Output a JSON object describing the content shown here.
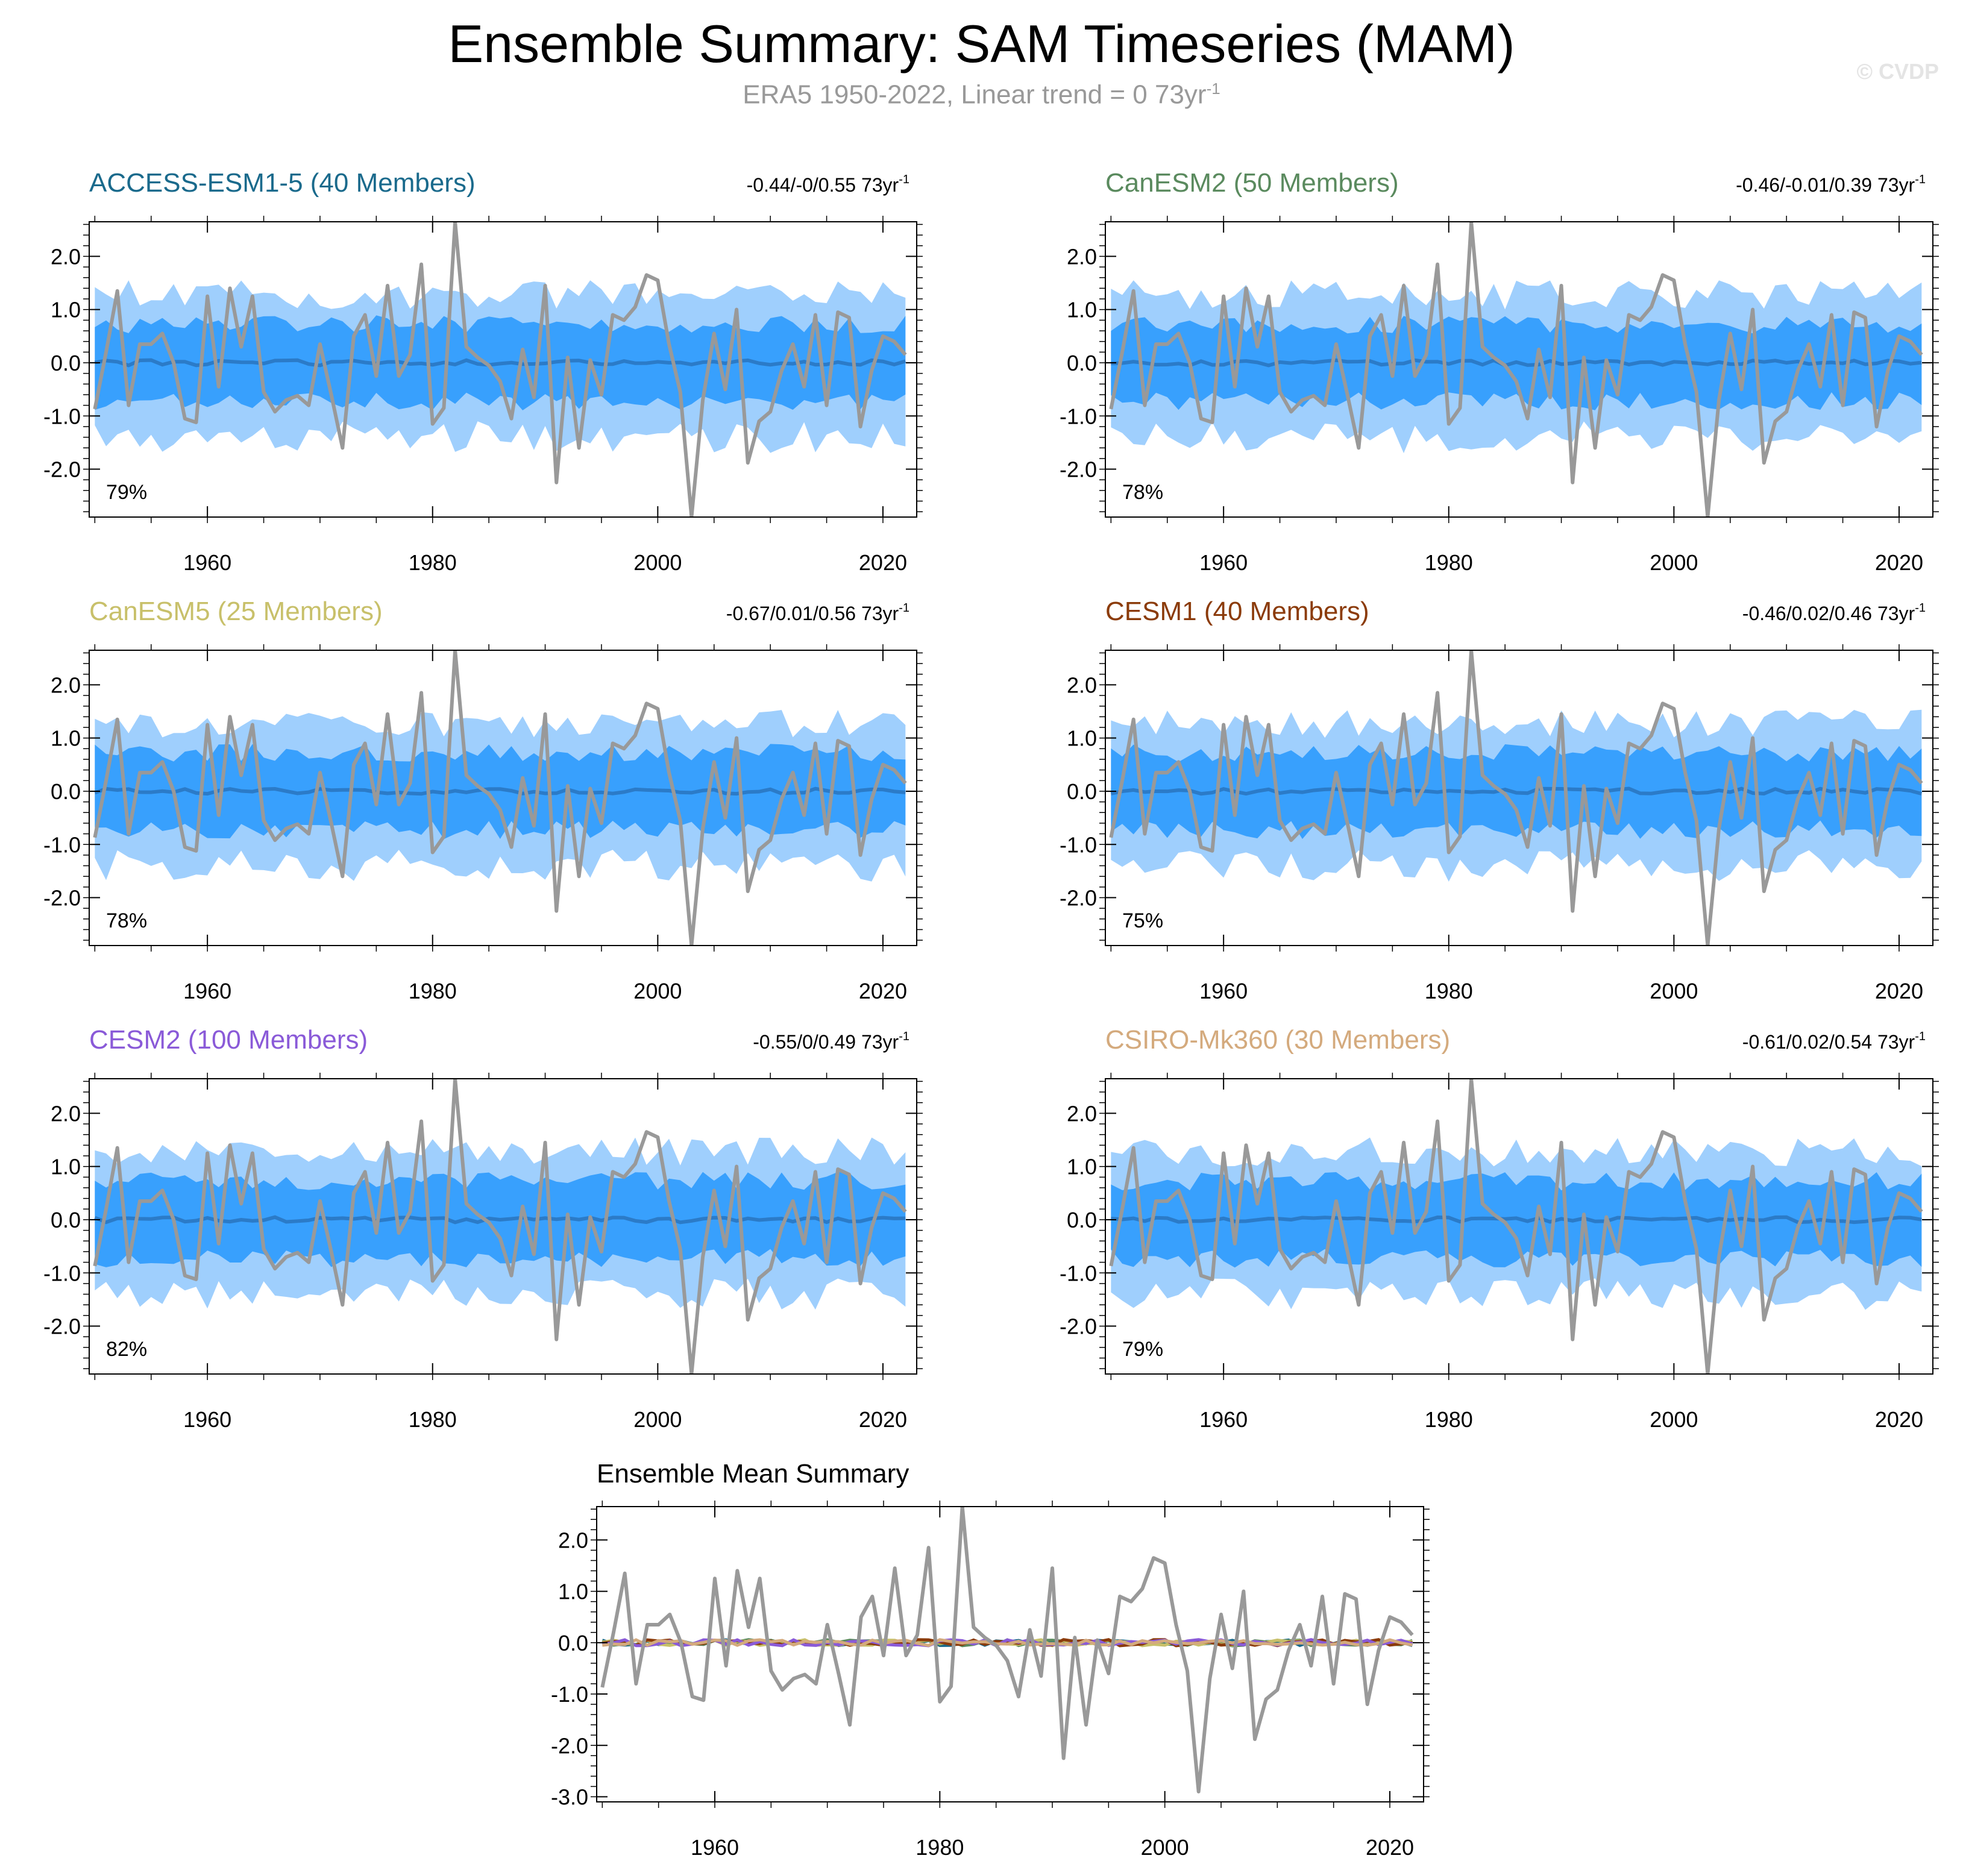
{
  "title": "Ensemble Summary: SAM Timeseries (MAM)",
  "subtitle": "ERA5 1950-2022, Linear trend = 0 73yr",
  "subtitle_sup": "-1",
  "watermark": "© CVDP",
  "colors": {
    "outer_band": "#9fcffd",
    "inner_band": "#38a0fd",
    "ens_mean_line": "#2b7bc8",
    "obs_line": "#999999"
  },
  "obs": {
    "name": "ERA5",
    "x": [
      1950,
      1951,
      1952,
      1953,
      1954,
      1955,
      1956,
      1957,
      1958,
      1959,
      1960,
      1961,
      1962,
      1963,
      1964,
      1965,
      1966,
      1967,
      1968,
      1969,
      1970,
      1971,
      1972,
      1973,
      1974,
      1975,
      1976,
      1977,
      1978,
      1979,
      1980,
      1981,
      1982,
      1983,
      1984,
      1985,
      1986,
      1987,
      1988,
      1989,
      1990,
      1991,
      1992,
      1993,
      1994,
      1995,
      1996,
      1997,
      1998,
      1999,
      2000,
      2001,
      2002,
      2003,
      2004,
      2005,
      2006,
      2007,
      2008,
      2009,
      2010,
      2011,
      2012,
      2013,
      2014,
      2015,
      2016,
      2017,
      2018,
      2019,
      2020,
      2021,
      2022
    ],
    "values": [
      -0.87,
      0.2,
      1.35,
      -0.8,
      0.35,
      0.35,
      0.55,
      0.0,
      -1.05,
      -1.12,
      1.25,
      -0.45,
      1.4,
      0.3,
      1.25,
      -0.55,
      -0.92,
      -0.7,
      -0.62,
      -0.8,
      0.35,
      -0.6,
      -1.6,
      0.5,
      0.9,
      -0.25,
      1.45,
      -0.25,
      0.15,
      1.85,
      -1.15,
      -0.85,
      2.65,
      0.3,
      0.1,
      -0.05,
      -0.35,
      -1.05,
      0.25,
      -0.65,
      1.45,
      -2.25,
      0.1,
      -1.6,
      0.05,
      -0.6,
      0.9,
      0.8,
      1.05,
      1.65,
      1.55,
      0.35,
      -0.55,
      -2.9,
      -0.7,
      0.55,
      -0.5,
      1.0,
      -1.88,
      -1.1,
      -0.92,
      -0.15,
      0.35,
      -0.45,
      0.9,
      -0.8,
      0.95,
      0.85,
      -1.2,
      -0.15,
      0.5,
      0.4,
      0.15
    ]
  },
  "chart_data": [
    {
      "type": "area",
      "model": "ACCESS-ESM1-5",
      "title": "ACCESS-ESM1-5 (40 Members)",
      "title_color": "#1a6a8c",
      "trend": "-0.44/-0/0.55 73yr",
      "trend_sup": "-1",
      "percent": "79%",
      "ylim": [
        -2.9,
        2.65
      ],
      "yticks": [
        "2.0",
        "1.0",
        "0.0",
        "-1.0",
        "-2.0"
      ],
      "xticks": [
        "1960",
        "1980",
        "2000",
        "2020"
      ],
      "seed": 1
    },
    {
      "type": "area",
      "model": "CanESM2",
      "title": "CanESM2 (50 Members)",
      "title_color": "#5a8a5e",
      "trend": "-0.46/-0.01/0.39 73yr",
      "trend_sup": "-1",
      "percent": "78%",
      "ylim": [
        -2.9,
        2.65
      ],
      "yticks": [
        "2.0",
        "1.0",
        "0.0",
        "-1.0",
        "-2.0"
      ],
      "xticks": [
        "1960",
        "1980",
        "2000",
        "2020"
      ],
      "seed": 2
    },
    {
      "type": "area",
      "model": "CanESM5",
      "title": "CanESM5 (25 Members)",
      "title_color": "#c8c06a",
      "trend": "-0.67/0.01/0.56 73yr",
      "trend_sup": "-1",
      "percent": "78%",
      "ylim": [
        -2.9,
        2.65
      ],
      "yticks": [
        "2.0",
        "1.0",
        "0.0",
        "-1.0",
        "-2.0"
      ],
      "xticks": [
        "1960",
        "1980",
        "2000",
        "2020"
      ],
      "seed": 3
    },
    {
      "type": "area",
      "model": "CESM1",
      "title": "CESM1 (40 Members)",
      "title_color": "#8b3b0a",
      "trend": "-0.46/0.02/0.46 73yr",
      "trend_sup": "-1",
      "percent": "75%",
      "ylim": [
        -2.9,
        2.65
      ],
      "yticks": [
        "2.0",
        "1.0",
        "0.0",
        "-1.0",
        "-2.0"
      ],
      "xticks": [
        "1960",
        "1980",
        "2000",
        "2020"
      ],
      "seed": 4
    },
    {
      "type": "area",
      "model": "CESM2",
      "title": "CESM2 (100 Members)",
      "title_color": "#8a5ad8",
      "trend": "-0.55/0/0.49 73yr",
      "trend_sup": "-1",
      "percent": "82%",
      "ylim": [
        -2.9,
        2.65
      ],
      "yticks": [
        "2.0",
        "1.0",
        "0.0",
        "-1.0",
        "-2.0"
      ],
      "xticks": [
        "1960",
        "1980",
        "2000",
        "2020"
      ],
      "seed": 5
    },
    {
      "type": "area",
      "model": "CSIRO-Mk360",
      "title": "CSIRO-Mk360 (30 Members)",
      "title_color": "#d4aa7d",
      "trend": "-0.61/0.02/0.54 73yr",
      "trend_sup": "-1",
      "percent": "79%",
      "ylim": [
        -2.9,
        2.65
      ],
      "yticks": [
        "2.0",
        "1.0",
        "0.0",
        "-1.0",
        "-2.0"
      ],
      "xticks": [
        "1960",
        "1980",
        "2000",
        "2020"
      ],
      "seed": 6
    },
    {
      "type": "line",
      "model": "summary",
      "title": "Ensemble Mean Summary",
      "ylim": [
        -3.1,
        2.65
      ],
      "yticks": [
        "2.0",
        "1.0",
        "0.0",
        "-1.0",
        "-2.0",
        "-3.0"
      ],
      "xticks": [
        "1960",
        "1980",
        "2000",
        "2020"
      ],
      "series": [
        {
          "name": "ACCESS-ESM1-5",
          "color": "#1a6a8c",
          "seed": 11
        },
        {
          "name": "CanESM2",
          "color": "#5a8a5e",
          "seed": 12
        },
        {
          "name": "CanESM5",
          "color": "#c8c06a",
          "seed": 13
        },
        {
          "name": "CESM1",
          "color": "#8b3b0a",
          "seed": 14
        },
        {
          "name": "CESM2",
          "color": "#8a5ad8",
          "seed": 15
        },
        {
          "name": "CSIRO-Mk360",
          "color": "#d4aa7d",
          "seed": 16
        }
      ]
    }
  ]
}
